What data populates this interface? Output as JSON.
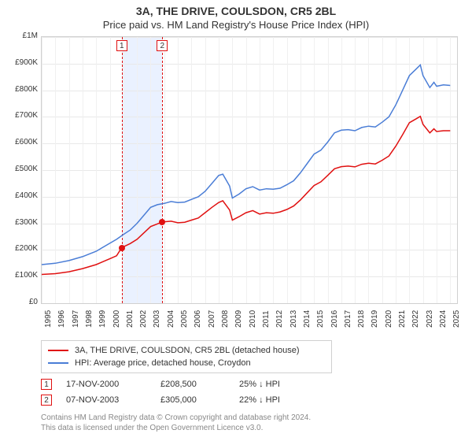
{
  "title": "3A, THE DRIVE, COULSDON, CR5 2BL",
  "subtitle": "Price paid vs. HM Land Registry's House Price Index (HPI)",
  "chart": {
    "type": "line",
    "background_color": "#ffffff",
    "grid_color": "#e8e8e8",
    "border_color": "#d0d0d0",
    "xlim": [
      1995,
      2025.5
    ],
    "ylim": [
      0,
      1000000
    ],
    "ytick_step": 100000,
    "ylabel_prefix": "£",
    "ytick_labels": [
      "£0",
      "£100K",
      "£200K",
      "£300K",
      "£400K",
      "£500K",
      "£600K",
      "£700K",
      "£800K",
      "£900K",
      "£1M"
    ],
    "xtick_step": 1,
    "xtick_years": [
      1995,
      1996,
      1997,
      1998,
      1999,
      2000,
      2001,
      2002,
      2003,
      2004,
      2005,
      2006,
      2007,
      2008,
      2009,
      2010,
      2011,
      2012,
      2013,
      2014,
      2015,
      2016,
      2017,
      2018,
      2019,
      2020,
      2021,
      2022,
      2023,
      2024,
      2025
    ],
    "label_fontsize": 10,
    "series": [
      {
        "name": "hpi",
        "label": "HPI: Average price, detached house, Croydon",
        "color": "#4a7dd6",
        "line_width": 1.5,
        "points": [
          [
            1995,
            145000
          ],
          [
            1996,
            150000
          ],
          [
            1997,
            160000
          ],
          [
            1998,
            175000
          ],
          [
            1999,
            195000
          ],
          [
            2000,
            225000
          ],
          [
            2000.5,
            240000
          ],
          [
            2001,
            258000
          ],
          [
            2001.5,
            275000
          ],
          [
            2002,
            300000
          ],
          [
            2002.5,
            330000
          ],
          [
            2003,
            360000
          ],
          [
            2003.5,
            370000
          ],
          [
            2004,
            375000
          ],
          [
            2004.5,
            382000
          ],
          [
            2005,
            378000
          ],
          [
            2005.5,
            380000
          ],
          [
            2006,
            390000
          ],
          [
            2006.5,
            400000
          ],
          [
            2007,
            420000
          ],
          [
            2007.5,
            450000
          ],
          [
            2008,
            480000
          ],
          [
            2008.3,
            485000
          ],
          [
            2008.8,
            440000
          ],
          [
            2009,
            395000
          ],
          [
            2009.5,
            410000
          ],
          [
            2010,
            430000
          ],
          [
            2010.5,
            438000
          ],
          [
            2011,
            425000
          ],
          [
            2011.5,
            430000
          ],
          [
            2012,
            428000
          ],
          [
            2012.5,
            432000
          ],
          [
            2013,
            445000
          ],
          [
            2013.5,
            460000
          ],
          [
            2014,
            490000
          ],
          [
            2014.5,
            525000
          ],
          [
            2015,
            560000
          ],
          [
            2015.5,
            575000
          ],
          [
            2016,
            605000
          ],
          [
            2016.5,
            640000
          ],
          [
            2017,
            650000
          ],
          [
            2017.5,
            652000
          ],
          [
            2018,
            648000
          ],
          [
            2018.5,
            660000
          ],
          [
            2019,
            665000
          ],
          [
            2019.5,
            662000
          ],
          [
            2020,
            680000
          ],
          [
            2020.5,
            700000
          ],
          [
            2021,
            745000
          ],
          [
            2021.5,
            800000
          ],
          [
            2022,
            855000
          ],
          [
            2022.5,
            880000
          ],
          [
            2022.8,
            895000
          ],
          [
            2023,
            855000
          ],
          [
            2023.5,
            810000
          ],
          [
            2023.8,
            830000
          ],
          [
            2024,
            815000
          ],
          [
            2024.5,
            820000
          ],
          [
            2025,
            818000
          ]
        ]
      },
      {
        "name": "property",
        "label": "3A, THE DRIVE, COULSDON, CR5 2BL (detached house)",
        "color": "#e01010",
        "line_width": 1.5,
        "points": [
          [
            1995,
            108000
          ],
          [
            1996,
            111000
          ],
          [
            1997,
            118000
          ],
          [
            1998,
            130000
          ],
          [
            1999,
            145000
          ],
          [
            2000,
            167000
          ],
          [
            2000.5,
            178000
          ],
          [
            2000.877,
            208500
          ],
          [
            2001.5,
            224000
          ],
          [
            2002,
            240000
          ],
          [
            2002.5,
            264000
          ],
          [
            2003,
            288000
          ],
          [
            2003.5,
            298000
          ],
          [
            2003.853,
            305000
          ],
          [
            2004.5,
            308000
          ],
          [
            2005,
            302000
          ],
          [
            2005.5,
            304000
          ],
          [
            2006,
            312000
          ],
          [
            2006.5,
            320000
          ],
          [
            2007,
            340000
          ],
          [
            2007.5,
            360000
          ],
          [
            2008,
            378000
          ],
          [
            2008.3,
            385000
          ],
          [
            2008.8,
            350000
          ],
          [
            2009,
            312000
          ],
          [
            2009.5,
            325000
          ],
          [
            2010,
            340000
          ],
          [
            2010.5,
            348000
          ],
          [
            2011,
            335000
          ],
          [
            2011.5,
            340000
          ],
          [
            2012,
            338000
          ],
          [
            2012.5,
            343000
          ],
          [
            2013,
            352000
          ],
          [
            2013.5,
            365000
          ],
          [
            2014,
            388000
          ],
          [
            2014.5,
            415000
          ],
          [
            2015,
            442000
          ],
          [
            2015.5,
            456000
          ],
          [
            2016,
            480000
          ],
          [
            2016.5,
            505000
          ],
          [
            2017,
            513000
          ],
          [
            2017.5,
            515000
          ],
          [
            2018,
            512000
          ],
          [
            2018.5,
            522000
          ],
          [
            2019,
            526000
          ],
          [
            2019.5,
            523000
          ],
          [
            2020,
            537000
          ],
          [
            2020.5,
            553000
          ],
          [
            2021,
            590000
          ],
          [
            2021.5,
            633000
          ],
          [
            2022,
            678000
          ],
          [
            2022.5,
            693000
          ],
          [
            2022.8,
            702000
          ],
          [
            2023,
            672000
          ],
          [
            2023.5,
            640000
          ],
          [
            2023.8,
            655000
          ],
          [
            2024,
            645000
          ],
          [
            2024.5,
            648000
          ],
          [
            2025,
            648000
          ]
        ]
      }
    ],
    "events": [
      {
        "marker": "1",
        "date_label": "17-NOV-2000",
        "date_value": 2000.877,
        "price_label": "£208,500",
        "price_value": 208500,
        "delta_label": "25% ↓ HPI",
        "line_color": "#e01010",
        "box_border": "#e01010"
      },
      {
        "marker": "2",
        "date_label": "07-NOV-2003",
        "date_value": 2003.853,
        "price_label": "£305,000",
        "price_value": 305000,
        "delta_label": "22% ↓ HPI",
        "line_color": "#e01010",
        "box_border": "#e01010"
      }
    ],
    "event_band": {
      "from": 2000.877,
      "to": 2003.853,
      "color": "#eaf1ff"
    }
  },
  "legend": {
    "border_color": "#d0d0d0",
    "fontsize": 11
  },
  "footnote": {
    "line1": "Contains HM Land Registry data © Crown copyright and database right 2024.",
    "line2": "This data is licensed under the Open Government Licence v3.0.",
    "color": "#888888",
    "fontsize": 10
  }
}
